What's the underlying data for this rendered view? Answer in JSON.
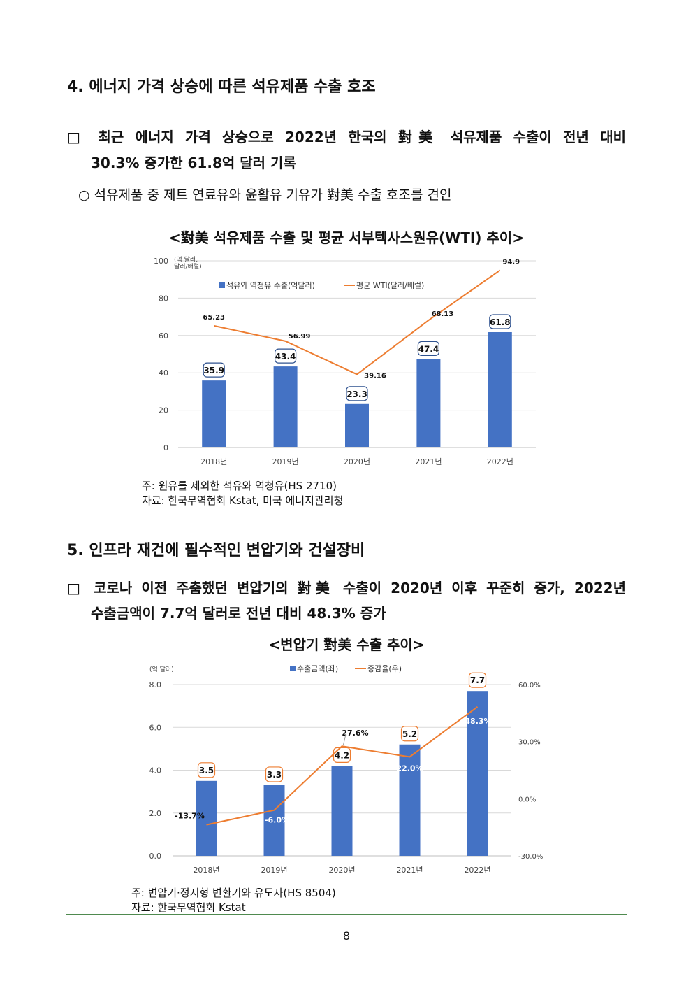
{
  "section4": {
    "heading": "4. 에너지 가격 상승에 따른 석유제품 수출 호조",
    "bullet_line1": "□ 최근 에너지 가격 상승으로 2022년 한국의 對美 석유제품 수출이 전년 대비",
    "bullet_line2": "30.3% 증가한 61.8억 달러 기록",
    "sub": "○ 석유제품 중 제트 연료유와 윤활유 기유가 對美 수출 호조를 견인",
    "note1": "주: 원유를 제외한 석유와 역청유(HS 2710)",
    "note2": "자료: 한국무역협회 Kstat, 미국 에너지관리청"
  },
  "section5": {
    "heading": "5. 인프라 재건에 필수적인 변압기와 건설장비",
    "bullet_line1": "□ 코로나 이전 주춤했던 변압기의 對美 수출이 2020년 이후 꾸준히 증가, 2022년",
    "bullet_line2": "수출금액이 7.7억 달러로 전년 대비 48.3% 증가",
    "note1": "주: 변압기·정지형 변환기와 유도자(HS 8504)",
    "note2": "자료: 한국무역협회 Kstat"
  },
  "page_number": "8",
  "chart_data": [
    {
      "type": "bar",
      "title": "<對美 석유제품 수출 및 평균 서부텍사스원유(WTI) 추이>",
      "ylabel": "(억 달러,\n달러/배럴)",
      "categories": [
        "2018년",
        "2019년",
        "2020년",
        "2021년",
        "2022년"
      ],
      "ylim": [
        0,
        100
      ],
      "yticks": [
        "0",
        "20",
        "40",
        "60",
        "80",
        "100"
      ],
      "legend_position": "top",
      "series": [
        {
          "name": "석유와 역청유 수출(억달러)",
          "type": "bar",
          "color": "#4472c4",
          "values": [
            35.9,
            43.4,
            23.3,
            47.4,
            61.8
          ],
          "labels": [
            "35.9",
            "43.4",
            "23.3",
            "47.4",
            "61.8"
          ]
        },
        {
          "name": "평균 WTI(달러/배럴)",
          "type": "line",
          "color": "#ed7d31",
          "values": [
            65.23,
            56.99,
            39.16,
            68.13,
            94.9
          ],
          "labels": [
            "65.23",
            "56.99",
            "39.16",
            "68.13",
            "94.9"
          ]
        }
      ]
    },
    {
      "type": "bar",
      "title": "<변압기 對美 수출 추이>",
      "ylabel": "(억 달러)",
      "categories": [
        "2018년",
        "2019년",
        "2020년",
        "2021년",
        "2022년"
      ],
      "ylim": [
        0,
        8
      ],
      "yticks": [
        "0.0",
        "2.0",
        "4.0",
        "6.0",
        "8.0"
      ],
      "y2lim": [
        -30,
        60
      ],
      "y2ticks": [
        "-30.0%",
        "0.0%",
        "30.0%",
        "60.0%"
      ],
      "legend_position": "top",
      "series": [
        {
          "name": "수출금액(좌)",
          "type": "bar",
          "color": "#4472c4",
          "values": [
            3.5,
            3.3,
            4.2,
            5.2,
            7.7
          ],
          "labels": [
            "3.5",
            "3.3",
            "4.2",
            "5.2",
            "7.7"
          ]
        },
        {
          "name": "증감율(우)",
          "type": "line",
          "color": "#ed7d31",
          "values": [
            -13.7,
            -6.0,
            27.6,
            22.0,
            48.3
          ],
          "labels": [
            "-13.7%",
            "-6.0%",
            "27.6%",
            "22.0%",
            "48.3%"
          ]
        }
      ]
    }
  ]
}
